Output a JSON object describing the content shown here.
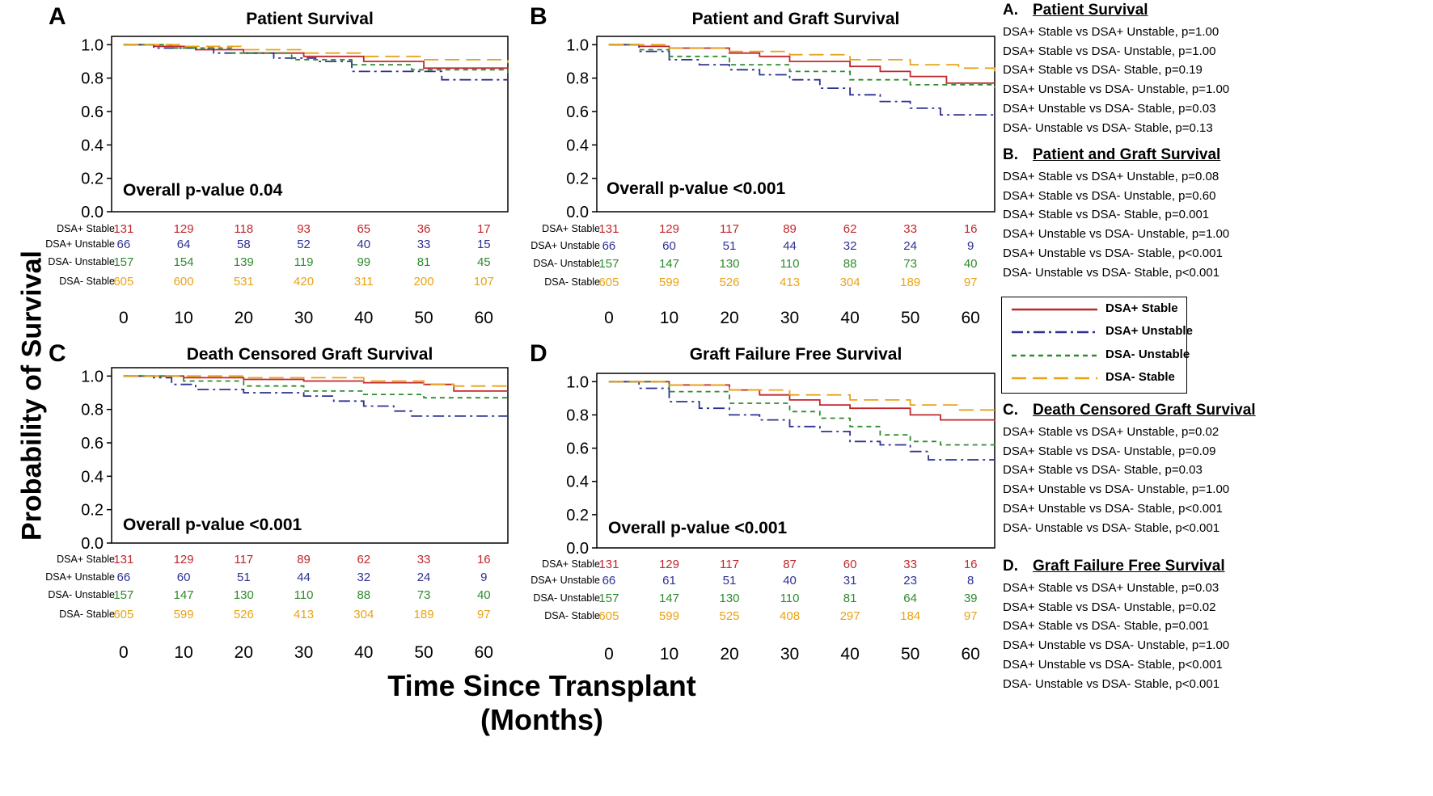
{
  "figure": {
    "y_axis_title": "Probability of Survival",
    "x_axis_title": "Time Since Transplant (Months)"
  },
  "colors": {
    "DSA+ Stable": "#c0272d",
    "DSA+ Unstable": "#2e3192",
    "DSA- Unstable": "#2e8b2e",
    "DSA- Stable": "#e8a317"
  },
  "legend": {
    "items": [
      {
        "label": "DSA+ Stable",
        "style": "solid",
        "color": "#c0272d"
      },
      {
        "label": "DSA+ Unstable",
        "style": "dash-dot",
        "color": "#2e3192"
      },
      {
        "label": "DSA- Unstable",
        "style": "dashed",
        "color": "#2e8b2e"
      },
      {
        "label": "DSA- Stable",
        "style": "long-dash",
        "color": "#e8a317"
      }
    ]
  },
  "chart_data": [
    {
      "panel": "A",
      "type": "line",
      "title": "Patient Survival",
      "annotation": "Overall p-value 0.04",
      "xlabel": "Time Since Transplant (Months)",
      "ylabel": "Probability of Survival",
      "xlim": [
        -2,
        64
      ],
      "ylim": [
        0,
        1.05
      ],
      "xticks": [
        0,
        10,
        20,
        30,
        40,
        50,
        60
      ],
      "yticks": [
        "0.0",
        "0.2",
        "0.4",
        "0.6",
        "0.8",
        "1.0"
      ],
      "series": [
        {
          "name": "DSA+ Stable",
          "x": [
            0,
            5,
            12,
            20,
            30,
            40,
            50,
            64
          ],
          "y": [
            1.0,
            0.99,
            0.97,
            0.95,
            0.93,
            0.9,
            0.86,
            0.83
          ]
        },
        {
          "name": "DSA+ Unstable",
          "x": [
            0,
            5,
            15,
            25,
            32,
            38,
            48,
            53,
            64
          ],
          "y": [
            1.0,
            0.98,
            0.95,
            0.92,
            0.9,
            0.84,
            0.84,
            0.79,
            0.79
          ]
        },
        {
          "name": "DSA- Unstable",
          "x": [
            0,
            8,
            18,
            28,
            38,
            48,
            64
          ],
          "y": [
            1.0,
            0.98,
            0.95,
            0.91,
            0.88,
            0.85,
            0.83
          ]
        },
        {
          "name": "DSA- Stable",
          "x": [
            0,
            10,
            20,
            30,
            40,
            50,
            64
          ],
          "y": [
            1.0,
            0.99,
            0.97,
            0.95,
            0.93,
            0.91,
            0.89
          ]
        }
      ],
      "risk_table": {
        "rows": [
          {
            "name": "DSA+ Stable",
            "counts": [
              "131",
              "129",
              "118",
              "93",
              "65",
              "36",
              "17"
            ]
          },
          {
            "name": "DSA+ Unstable",
            "counts": [
              "66",
              "64",
              "58",
              "52",
              "40",
              "33",
              "15"
            ]
          },
          {
            "name": "DSA- Unstable",
            "counts": [
              "157",
              "154",
              "139",
              "119",
              "99",
              "81",
              "45"
            ]
          },
          {
            "name": "DSA- Stable",
            "counts": [
              "605",
              "600",
              "531",
              "420",
              "311",
              "200",
              "107"
            ]
          }
        ]
      }
    },
    {
      "panel": "B",
      "type": "line",
      "title": "Patient and Graft Survival",
      "annotation": "Overall p-value <0.001",
      "xlabel": "Time Since Transplant (Months)",
      "ylabel": "Probability of Survival",
      "xlim": [
        -2,
        64
      ],
      "ylim": [
        0,
        1.05
      ],
      "xticks": [
        0,
        10,
        20,
        30,
        40,
        50,
        60
      ],
      "yticks": [
        "0.0",
        "0.2",
        "0.4",
        "0.6",
        "0.8",
        "1.0"
      ],
      "series": [
        {
          "name": "DSA+ Stable",
          "x": [
            0,
            5,
            10,
            20,
            25,
            30,
            40,
            45,
            50,
            56,
            64
          ],
          "y": [
            1.0,
            0.99,
            0.98,
            0.95,
            0.93,
            0.9,
            0.87,
            0.84,
            0.81,
            0.77,
            0.77
          ]
        },
        {
          "name": "DSA+ Unstable",
          "x": [
            0,
            5,
            10,
            15,
            20,
            25,
            30,
            35,
            40,
            45,
            50,
            55,
            64
          ],
          "y": [
            1.0,
            0.96,
            0.91,
            0.88,
            0.85,
            0.82,
            0.79,
            0.74,
            0.7,
            0.66,
            0.62,
            0.58,
            0.58
          ]
        },
        {
          "name": "DSA- Unstable",
          "x": [
            0,
            5,
            10,
            20,
            30,
            40,
            50,
            64
          ],
          "y": [
            1.0,
            0.97,
            0.93,
            0.88,
            0.84,
            0.79,
            0.76,
            0.74
          ]
        },
        {
          "name": "DSA- Stable",
          "x": [
            0,
            10,
            20,
            30,
            40,
            50,
            58,
            64
          ],
          "y": [
            1.0,
            0.98,
            0.96,
            0.94,
            0.91,
            0.88,
            0.86,
            0.84
          ]
        }
      ],
      "risk_table": {
        "rows": [
          {
            "name": "DSA+ Stable",
            "counts": [
              "131",
              "129",
              "117",
              "89",
              "62",
              "33",
              "16"
            ]
          },
          {
            "name": "DSA+ Unstable",
            "counts": [
              "66",
              "60",
              "51",
              "44",
              "32",
              "24",
              "9"
            ]
          },
          {
            "name": "DSA- Unstable",
            "counts": [
              "157",
              "147",
              "130",
              "110",
              "88",
              "73",
              "40"
            ]
          },
          {
            "name": "DSA- Stable",
            "counts": [
              "605",
              "599",
              "526",
              "413",
              "304",
              "189",
              "97"
            ]
          }
        ]
      }
    },
    {
      "panel": "C",
      "type": "line",
      "title": "Death Censored Graft Survival",
      "annotation": "Overall p-value <0.001",
      "xlabel": "Time Since Transplant (Months)",
      "ylabel": "Probability of Survival",
      "xlim": [
        -2,
        64
      ],
      "ylim": [
        0,
        1.05
      ],
      "xticks": [
        0,
        10,
        20,
        30,
        40,
        50,
        60
      ],
      "yticks": [
        "0.0",
        "0.2",
        "0.4",
        "0.6",
        "0.8",
        "1.0"
      ],
      "series": [
        {
          "name": "DSA+ Stable",
          "x": [
            0,
            10,
            20,
            30,
            40,
            50,
            55,
            64
          ],
          "y": [
            1.0,
            0.99,
            0.98,
            0.97,
            0.96,
            0.95,
            0.91,
            0.91
          ]
        },
        {
          "name": "DSA+ Unstable",
          "x": [
            0,
            5,
            8,
            12,
            20,
            30,
            35,
            40,
            45,
            48,
            64
          ],
          "y": [
            1.0,
            0.99,
            0.95,
            0.92,
            0.9,
            0.88,
            0.85,
            0.82,
            0.79,
            0.76,
            0.76
          ]
        },
        {
          "name": "DSA- Unstable",
          "x": [
            0,
            10,
            20,
            30,
            40,
            50,
            64
          ],
          "y": [
            1.0,
            0.97,
            0.94,
            0.91,
            0.89,
            0.87,
            0.86
          ]
        },
        {
          "name": "DSA- Stable",
          "x": [
            0,
            20,
            40,
            50,
            55,
            64
          ],
          "y": [
            1.0,
            0.99,
            0.97,
            0.95,
            0.94,
            0.94
          ]
        }
      ],
      "risk_table": {
        "rows": [
          {
            "name": "DSA+ Stable",
            "counts": [
              "131",
              "129",
              "117",
              "89",
              "62",
              "33",
              "16"
            ]
          },
          {
            "name": "DSA+ Unstable",
            "counts": [
              "66",
              "60",
              "51",
              "44",
              "32",
              "24",
              "9"
            ]
          },
          {
            "name": "DSA- Unstable",
            "counts": [
              "157",
              "147",
              "130",
              "110",
              "88",
              "73",
              "40"
            ]
          },
          {
            "name": "DSA- Stable",
            "counts": [
              "605",
              "599",
              "526",
              "413",
              "304",
              "189",
              "97"
            ]
          }
        ]
      }
    },
    {
      "panel": "D",
      "type": "line",
      "title": "Graft Failure Free Survival",
      "annotation": "Overall p-value <0.001",
      "xlabel": "Time Since Transplant (Months)",
      "ylabel": "Probability of Survival",
      "xlim": [
        -2,
        64
      ],
      "ylim": [
        0,
        1.05
      ],
      "xticks": [
        0,
        10,
        20,
        30,
        40,
        50,
        60
      ],
      "yticks": [
        "0.0",
        "0.2",
        "0.4",
        "0.6",
        "0.8",
        "1.0"
      ],
      "series": [
        {
          "name": "DSA+ Stable",
          "x": [
            0,
            10,
            20,
            25,
            30,
            35,
            40,
            50,
            55,
            64
          ],
          "y": [
            1.0,
            0.98,
            0.95,
            0.92,
            0.89,
            0.86,
            0.84,
            0.8,
            0.77,
            0.76
          ]
        },
        {
          "name": "DSA+ Unstable",
          "x": [
            0,
            5,
            10,
            15,
            20,
            25,
            30,
            35,
            40,
            45,
            50,
            53,
            64
          ],
          "y": [
            1.0,
            0.96,
            0.88,
            0.84,
            0.8,
            0.77,
            0.73,
            0.7,
            0.64,
            0.62,
            0.58,
            0.53,
            0.53
          ]
        },
        {
          "name": "DSA- Unstable",
          "x": [
            0,
            10,
            20,
            30,
            35,
            40,
            45,
            50,
            55,
            64
          ],
          "y": [
            1.0,
            0.94,
            0.87,
            0.82,
            0.78,
            0.73,
            0.68,
            0.64,
            0.62,
            0.6
          ]
        },
        {
          "name": "DSA- Stable",
          "x": [
            0,
            10,
            20,
            30,
            40,
            50,
            58,
            64
          ],
          "y": [
            1.0,
            0.98,
            0.95,
            0.92,
            0.89,
            0.86,
            0.83,
            0.81
          ]
        }
      ],
      "risk_table": {
        "rows": [
          {
            "name": "DSA+ Stable",
            "counts": [
              "131",
              "129",
              "117",
              "87",
              "60",
              "33",
              "16"
            ]
          },
          {
            "name": "DSA+ Unstable",
            "counts": [
              "66",
              "61",
              "51",
              "40",
              "31",
              "23",
              "8"
            ]
          },
          {
            "name": "DSA- Unstable",
            "counts": [
              "157",
              "147",
              "130",
              "110",
              "81",
              "64",
              "39"
            ]
          },
          {
            "name": "DSA- Stable",
            "counts": [
              "605",
              "599",
              "525",
              "408",
              "297",
              "184",
              "97"
            ]
          }
        ]
      }
    }
  ],
  "stats": [
    {
      "letter": "A.",
      "title": "Patient Survival",
      "rows": [
        "DSA+ Stable vs DSA+ Unstable, p=1.00",
        "DSA+ Stable vs DSA- Unstable, p=1.00",
        "DSA+ Stable vs DSA- Stable, p=0.19",
        "DSA+ Unstable vs DSA- Unstable, p=1.00",
        "DSA+ Unstable vs DSA- Stable, p=0.03",
        "DSA- Unstable vs DSA- Stable, p=0.13"
      ]
    },
    {
      "letter": "B.",
      "title": "Patient and Graft Survival",
      "rows": [
        "DSA+ Stable vs DSA+ Unstable, p=0.08",
        "DSA+ Stable vs DSA- Unstable, p=0.60",
        "DSA+ Stable vs DSA- Stable, p=0.001",
        "DSA+ Unstable vs DSA- Unstable, p=1.00",
        "DSA+ Unstable vs DSA- Stable, p<0.001",
        "DSA- Unstable vs DSA- Stable, p<0.001"
      ]
    },
    {
      "letter": "C.",
      "title": "Death Censored Graft Survival",
      "rows": [
        "DSA+ Stable vs DSA+ Unstable, p=0.02",
        "DSA+ Stable vs DSA- Unstable, p=0.09",
        "DSA+ Stable vs DSA- Stable, p=0.03",
        "DSA+ Unstable vs DSA- Unstable, p=1.00",
        "DSA+ Unstable vs DSA- Stable, p<0.001",
        "DSA- Unstable vs DSA- Stable, p<0.001"
      ]
    },
    {
      "letter": "D.",
      "title": "Graft Failure Free Survival",
      "rows": [
        "DSA+ Stable vs DSA+ Unstable, p=0.03",
        "DSA+ Stable vs DSA- Unstable, p=0.02",
        "DSA+ Stable vs DSA- Stable, p=0.001",
        "DSA+ Unstable vs DSA- Unstable, p=1.00",
        "DSA+ Unstable vs DSA- Stable, p<0.001",
        "DSA- Unstable vs DSA- Stable, p<0.001"
      ]
    }
  ]
}
